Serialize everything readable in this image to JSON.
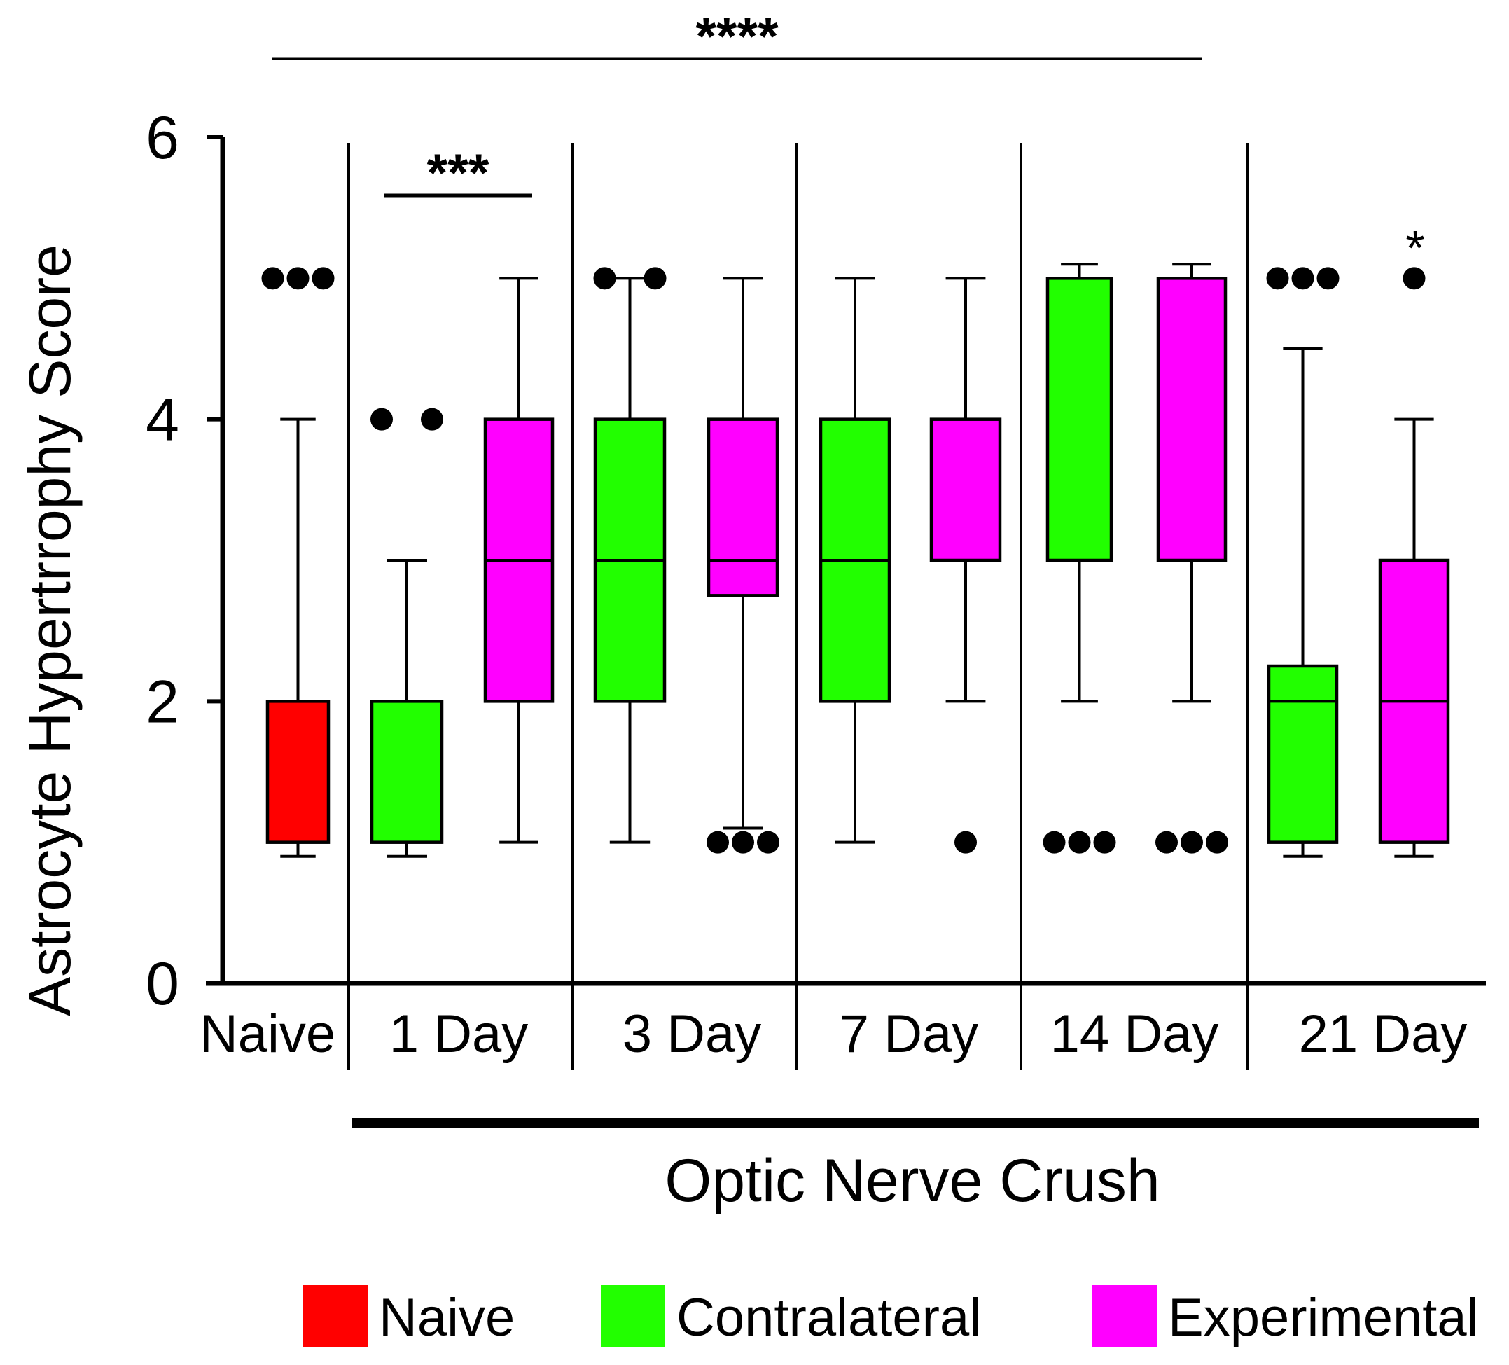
{
  "chart_data": {
    "type": "box",
    "title": "",
    "ylabel": "Astrocyte Hypertrrophy Score",
    "xlabel": "",
    "ylim": [
      0,
      6
    ],
    "yticks": [
      0,
      2,
      4,
      6
    ],
    "groups": [
      "Naive",
      "1 Day",
      "3 Day",
      "7 Day",
      "14 Day",
      "21 Day"
    ],
    "group_bracket_label": "Optic Nerve Crush",
    "legend": [
      {
        "name": "Naive",
        "color": "#ff0000"
      },
      {
        "name": "Contralateral",
        "color": "#22ff00"
      },
      {
        "name": "Experimental",
        "color": "#ff00ff"
      }
    ],
    "boxes": [
      {
        "group": "Naive",
        "condition": "Naive",
        "color": "#ff0000",
        "whisker_low": 0.9,
        "q1": 1,
        "median": 1,
        "q3": 2,
        "whisker_high": 4,
        "outliers": [
          5,
          5,
          5
        ]
      },
      {
        "group": "1 Day",
        "condition": "Contralateral",
        "color": "#22ff00",
        "whisker_low": 0.9,
        "q1": 1,
        "median": 1,
        "q3": 2,
        "whisker_high": 3,
        "outliers": [
          4,
          4
        ]
      },
      {
        "group": "1 Day",
        "condition": "Experimental",
        "color": "#ff00ff",
        "whisker_low": 1,
        "q1": 2,
        "median": 3,
        "q3": 4,
        "whisker_high": 5,
        "outliers": []
      },
      {
        "group": "3 Day",
        "condition": "Contralateral",
        "color": "#22ff00",
        "whisker_low": 1,
        "q1": 2,
        "median": 3,
        "q3": 4,
        "whisker_high": 5,
        "outliers": [
          5,
          5
        ]
      },
      {
        "group": "3 Day",
        "condition": "Experimental",
        "color": "#ff00ff",
        "whisker_low": 1.1,
        "q1": 2.75,
        "median": 3,
        "q3": 4,
        "whisker_high": 5,
        "outliers": [
          1,
          1,
          1
        ]
      },
      {
        "group": "7 Day",
        "condition": "Contralateral",
        "color": "#22ff00",
        "whisker_low": 1,
        "q1": 2,
        "median": 3,
        "q3": 4,
        "whisker_high": 5,
        "outliers": []
      },
      {
        "group": "7 Day",
        "condition": "Experimental",
        "color": "#ff00ff",
        "whisker_low": 2,
        "q1": 3,
        "median": 4,
        "q3": 4,
        "whisker_high": 5,
        "outliers": [
          1
        ]
      },
      {
        "group": "14 Day",
        "condition": "Contralateral",
        "color": "#22ff00",
        "whisker_low": 2,
        "q1": 3,
        "median": 5,
        "q3": 5,
        "whisker_high": 5.1,
        "outliers": [
          1,
          1,
          1
        ]
      },
      {
        "group": "14 Day",
        "condition": "Experimental",
        "color": "#ff00ff",
        "whisker_low": 2,
        "q1": 3,
        "median": 5,
        "q3": 5,
        "whisker_high": 5.1,
        "outliers": [
          1,
          1,
          1
        ]
      },
      {
        "group": "21 Day",
        "condition": "Contralateral",
        "color": "#22ff00",
        "whisker_low": 0.9,
        "q1": 1,
        "median": 2,
        "q3": 2.25,
        "whisker_high": 4.5,
        "outliers": [
          5,
          5,
          5
        ]
      },
      {
        "group": "21 Day",
        "condition": "Experimental",
        "color": "#ff00ff",
        "whisker_low": 0.9,
        "q1": 1,
        "median": 2,
        "q3": 3,
        "whisker_high": 4,
        "outliers": [
          5
        ]
      }
    ],
    "significance": [
      {
        "label": "****",
        "from_group": "Naive",
        "to_group": "14 Day",
        "level": 6.55
      },
      {
        "label": "***",
        "from_group": "1 Day",
        "to_group": "1 Day",
        "level": 5.6
      },
      {
        "label": "*",
        "group": "21 Day",
        "condition": "Experimental",
        "level": 5.25
      }
    ]
  }
}
